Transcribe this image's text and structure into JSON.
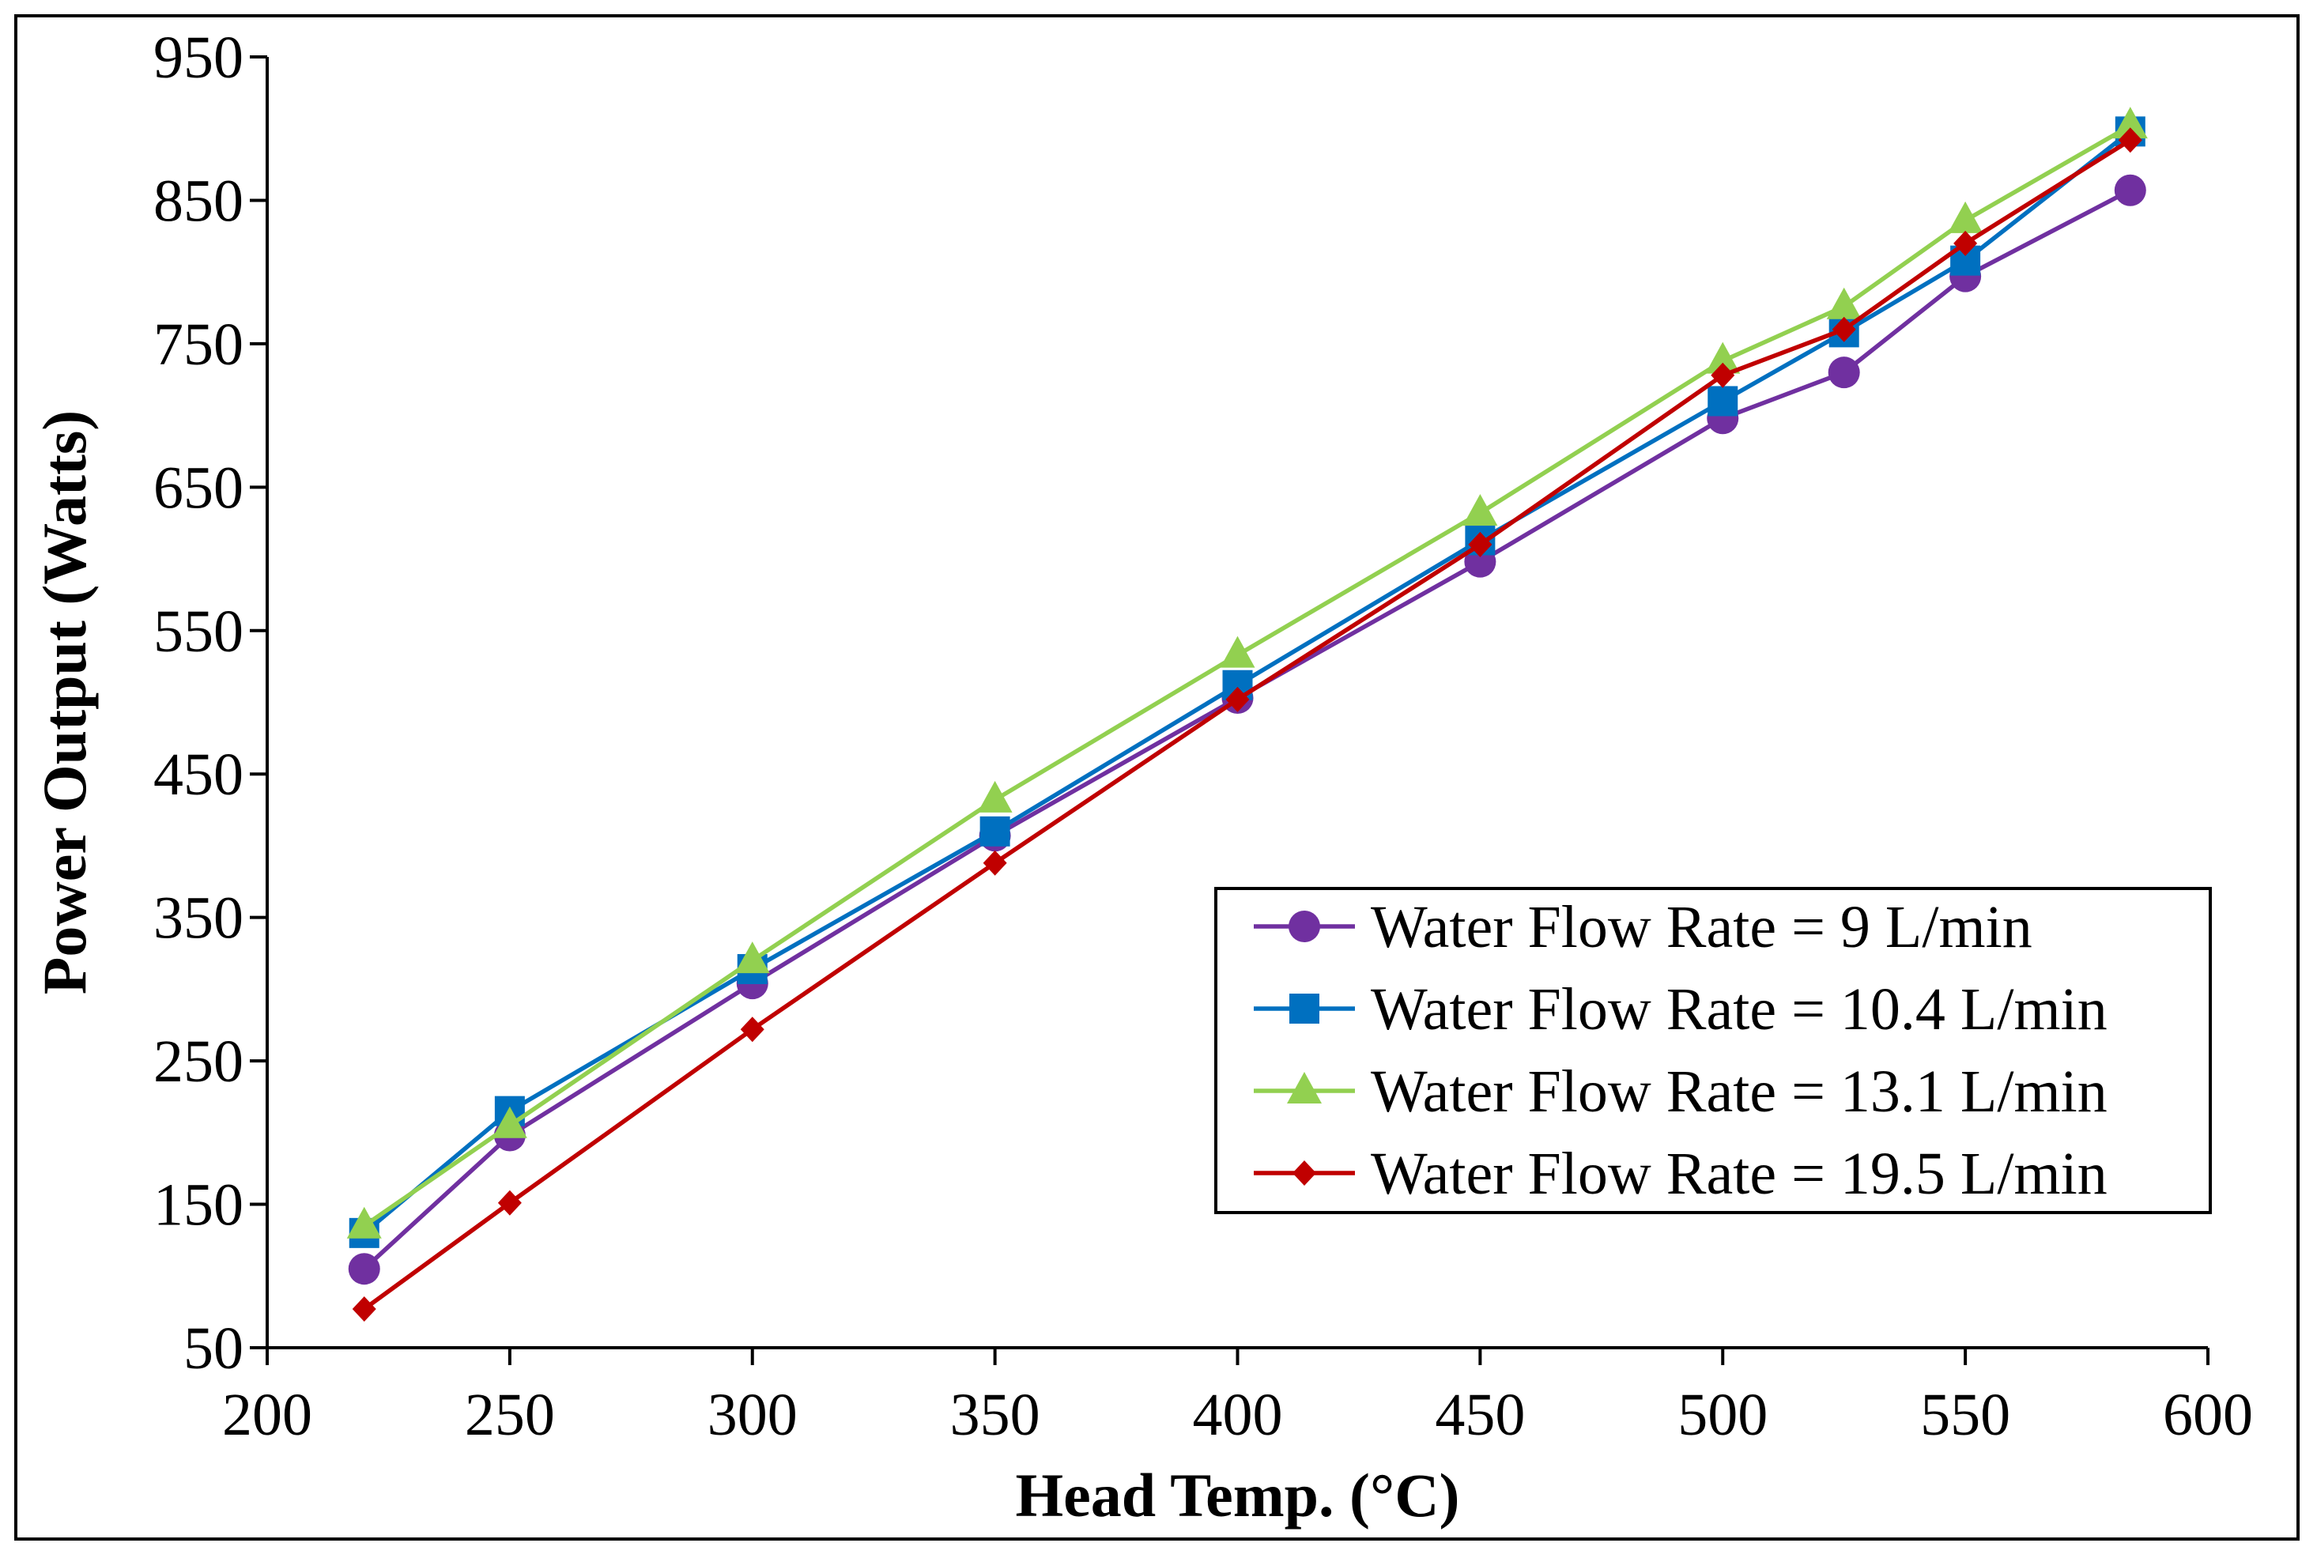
{
  "chart_data": {
    "type": "line",
    "xlabel": "Head Temp. (°C)",
    "ylabel": "Power Output (Watts)",
    "xlim": [
      200,
      600
    ],
    "ylim": [
      50,
      950
    ],
    "xticks": [
      200,
      250,
      300,
      350,
      400,
      450,
      500,
      550,
      600
    ],
    "yticks": [
      50,
      150,
      250,
      350,
      450,
      550,
      650,
      750,
      850,
      950
    ],
    "grid": false,
    "legend_position": "bottom-right",
    "x": [
      220,
      250,
      300,
      350,
      400,
      450,
      500,
      525,
      550,
      584
    ],
    "series": [
      {
        "name": "Water Flow Rate = 9 L/min",
        "marker": "circle",
        "color": "#7030A0",
        "values": [
          105,
          198,
          304,
          407,
          503,
          598,
          698,
          730,
          797,
          857
        ]
      },
      {
        "name": "Water Flow Rate = 10.4 L/min",
        "marker": "square",
        "color": "#0070C0",
        "values": [
          130,
          215,
          314,
          410,
          512,
          613,
          710,
          758,
          808,
          898
        ]
      },
      {
        "name": "Water Flow Rate = 13.1 L/min",
        "marker": "triangle",
        "color": "#92D050",
        "values": [
          135,
          205,
          320,
          432,
          533,
          632,
          738,
          776,
          836,
          902
        ]
      },
      {
        "name": "Water Flow Rate = 19.5 L/min",
        "marker": "diamond",
        "color": "#C00000",
        "values": [
          77,
          151,
          272,
          388,
          502,
          610,
          728,
          760,
          820,
          892
        ]
      }
    ]
  }
}
